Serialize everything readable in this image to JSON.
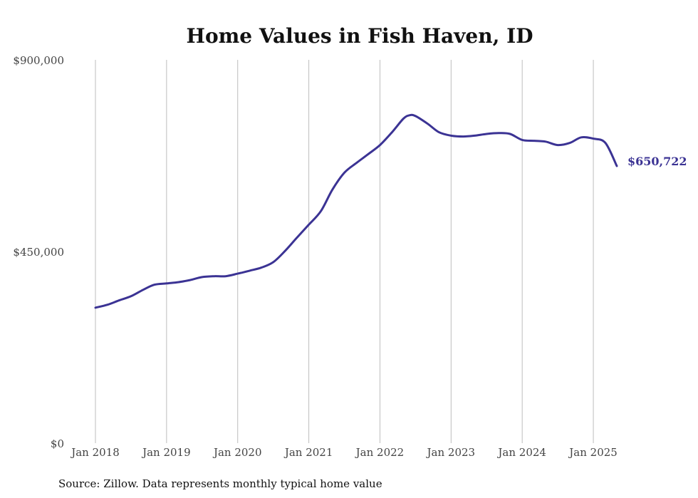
{
  "chart_data": {
    "type": "line",
    "title": "Home Values in Fish Haven, ID",
    "source": "Source: Zillow. Data represents monthly typical home value",
    "ylim": [
      0,
      900000
    ],
    "y_ticks": [
      {
        "value": 0,
        "label": "$0"
      },
      {
        "value": 450000,
        "label": "$450,000"
      },
      {
        "value": 900000,
        "label": "$900,000"
      }
    ],
    "x_ticks": [
      {
        "value": 2018.0,
        "label": "Jan 2018"
      },
      {
        "value": 2019.0,
        "label": "Jan 2019"
      },
      {
        "value": 2020.0,
        "label": "Jan 2020"
      },
      {
        "value": 2021.0,
        "label": "Jan 2021"
      },
      {
        "value": 2022.0,
        "label": "Jan 2022"
      },
      {
        "value": 2023.0,
        "label": "Jan 2023"
      },
      {
        "value": 2024.0,
        "label": "Jan 2024"
      },
      {
        "value": 2025.0,
        "label": "Jan 2025"
      }
    ],
    "xlim": [
      2018.0,
      2025.42
    ],
    "grid": "vertical",
    "line_color": "#3b3394",
    "end_label": "$650,722",
    "series": [
      {
        "x": [
          2018.0,
          2018.17,
          2018.33,
          2018.5,
          2018.67,
          2018.83,
          2019.0,
          2019.17,
          2019.33,
          2019.5,
          2019.67,
          2019.83,
          2020.0,
          2020.17,
          2020.33,
          2020.5,
          2020.67,
          2020.83,
          2021.0,
          2021.17,
          2021.33,
          2021.5,
          2021.67,
          2021.83,
          2022.0,
          2022.17,
          2022.33,
          2022.42,
          2022.5,
          2022.67,
          2022.83,
          2023.0,
          2023.17,
          2023.33,
          2023.5,
          2023.67,
          2023.83,
          2024.0,
          2024.17,
          2024.33,
          2024.5,
          2024.67,
          2024.83,
          2025.0,
          2025.17,
          2025.33
        ],
        "values": [
          318000,
          325000,
          335000,
          345000,
          360000,
          372000,
          375000,
          378000,
          383000,
          390000,
          392000,
          392000,
          398000,
          405000,
          412000,
          425000,
          452000,
          482000,
          513000,
          545000,
          595000,
          635000,
          658000,
          678000,
          700000,
          730000,
          762000,
          770000,
          768000,
          750000,
          730000,
          722000,
          720000,
          722000,
          726000,
          728000,
          726000,
          712000,
          710000,
          708000,
          700000,
          705000,
          718000,
          715000,
          705000,
          650722
        ]
      }
    ]
  }
}
